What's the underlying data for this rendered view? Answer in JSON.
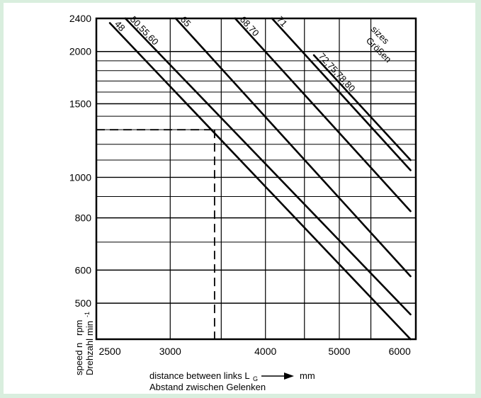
{
  "chart_data": {
    "type": "line",
    "title": "",
    "x_axis": {
      "scale": "log",
      "range": [
        2400,
        6300
      ],
      "ticks": [
        2500,
        3000,
        4000,
        5000,
        6000
      ],
      "label_en": "distance between links L",
      "label_sub": "G",
      "label_unit": "mm",
      "label_de": "Abstand zwischen Gelenken"
    },
    "y_axis": {
      "scale": "log",
      "range": [
        410,
        2400
      ],
      "ticks": [
        2400,
        2000,
        1500,
        1000,
        800,
        600,
        500
      ],
      "label_en": "speed n",
      "label_de": "Drehzahl",
      "unit_en": "rpm",
      "unit_de": "min",
      "unit_sup": "-1"
    },
    "sizes_label": [
      "sizes",
      "Größen"
    ],
    "grid": true,
    "series": [
      {
        "name": "48",
        "points": [
          [
            2500,
            2340
          ],
          [
            6200,
            410
          ]
        ]
      },
      {
        "name": "50,55,60",
        "points": [
          [
            2620,
            2400
          ],
          [
            6200,
            470
          ]
        ]
      },
      {
        "name": "65",
        "points": [
          [
            3050,
            2400
          ],
          [
            6200,
            580
          ]
        ]
      },
      {
        "name": "68,70",
        "points": [
          [
            3650,
            2400
          ],
          [
            6200,
            830
          ]
        ]
      },
      {
        "name": "71",
        "points": [
          [
            4080,
            2400
          ],
          [
            6200,
            1040
          ]
        ]
      },
      {
        "name": "72,75,78,80",
        "points": [
          [
            4630,
            1960
          ],
          [
            6200,
            1100
          ]
        ]
      }
    ],
    "example": {
      "x": 3430,
      "y": 1300
    }
  }
}
